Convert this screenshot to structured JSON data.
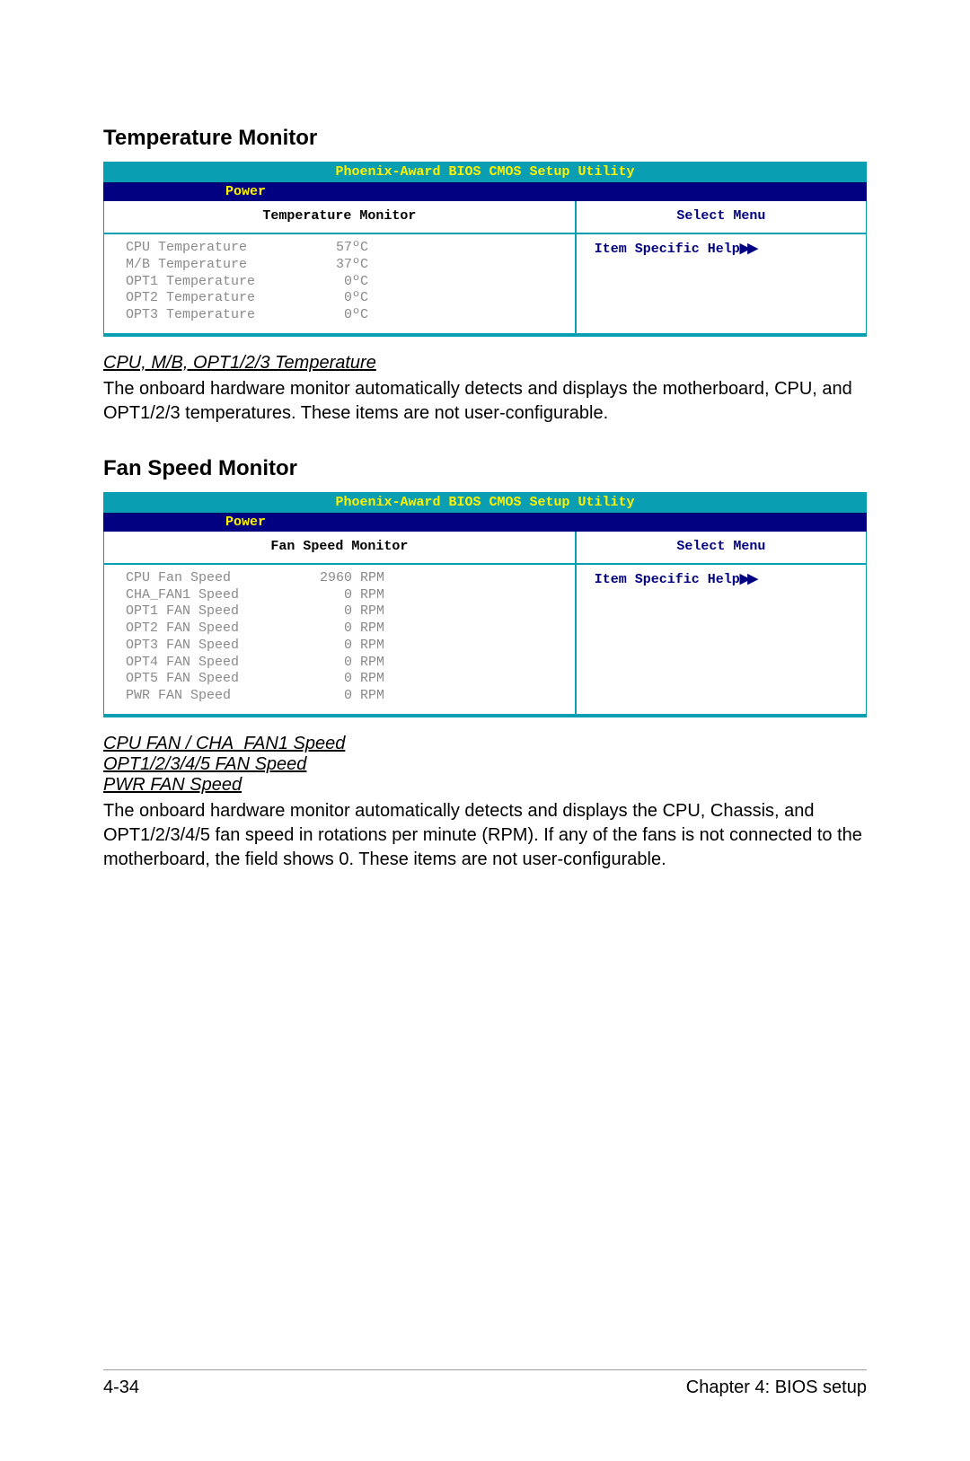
{
  "colors": {
    "bios_title_bg": "#0a9eb2",
    "bios_title_text": "#fff200",
    "bios_tab_bg": "#000080",
    "bios_tab_text": "#fff200",
    "bios_border": "#0a9eb2",
    "bios_data_text": "#8a8a8a",
    "bios_help_text": "#000080",
    "page_bg": "#ffffff",
    "text": "#000000",
    "footer_rule": "#a0a0a0"
  },
  "fonts": {
    "body": "Arial",
    "mono": "Courier New",
    "heading_size_pt": 18,
    "subheading_size_pt": 15,
    "body_size_pt": 15,
    "mono_size_pt": 11
  },
  "section1": {
    "heading": "Temperature Monitor",
    "bios": {
      "title": "Phoenix-Award BIOS CMOS Setup Utility",
      "tab": "Power",
      "left_header": "Temperature Monitor",
      "right_header": "Select Menu",
      "help_text": "Item Specific Help",
      "rows": [
        {
          "label": "CPU Temperature",
          "value": "57ºC"
        },
        {
          "label": "M/B Temperature",
          "value": "37ºC"
        },
        {
          "label": "OPT1 Temperature",
          "value": " 0ºC"
        },
        {
          "label": "OPT2 Temperature",
          "value": " 0ºC"
        },
        {
          "label": "OPT3 Temperature",
          "value": " 0ºC"
        }
      ]
    },
    "sub_heading": "CPU, M/B, OPT1/2/3 Temperature",
    "body": "The onboard hardware monitor automatically detects and displays the motherboard, CPU, and OPT1/2/3 temperatures. These items are not user-configurable."
  },
  "section2": {
    "heading": "Fan Speed Monitor",
    "bios": {
      "title": "Phoenix-Award BIOS CMOS Setup Utility",
      "tab": "Power",
      "left_header": "Fan Speed Monitor",
      "right_header": "Select Menu",
      "help_text": "Item Specific Help",
      "rows": [
        {
          "label": "CPU Fan Speed",
          "value": "2960 RPM"
        },
        {
          "label": "CHA_FAN1 Speed",
          "value": "   0 RPM"
        },
        {
          "label": "OPT1 FAN Speed",
          "value": "   0 RPM"
        },
        {
          "label": "OPT2 FAN Speed",
          "value": "   0 RPM"
        },
        {
          "label": "OPT3 FAN Speed",
          "value": "   0 RPM"
        },
        {
          "label": "OPT4 FAN Speed",
          "value": "   0 RPM"
        },
        {
          "label": "OPT5 FAN Speed",
          "value": "   0 RPM"
        },
        {
          "label": "PWR FAN Speed",
          "value": "   0 RPM"
        }
      ]
    },
    "sub_heading1": "CPU FAN / CHA_FAN1 Speed",
    "sub_heading2": "OPT1/2/3/4/5 FAN Speed",
    "sub_heading3": "PWR FAN Speed",
    "body": "The onboard hardware monitor automatically detects and displays the CPU, Chassis, and OPT1/2/3/4/5 fan speed in rotations per minute (RPM). If any of the fans is not connected to the motherboard, the field shows 0. These items are not user-configurable."
  },
  "footer": {
    "left": "4-34",
    "right": "Chapter 4: BIOS setup"
  }
}
